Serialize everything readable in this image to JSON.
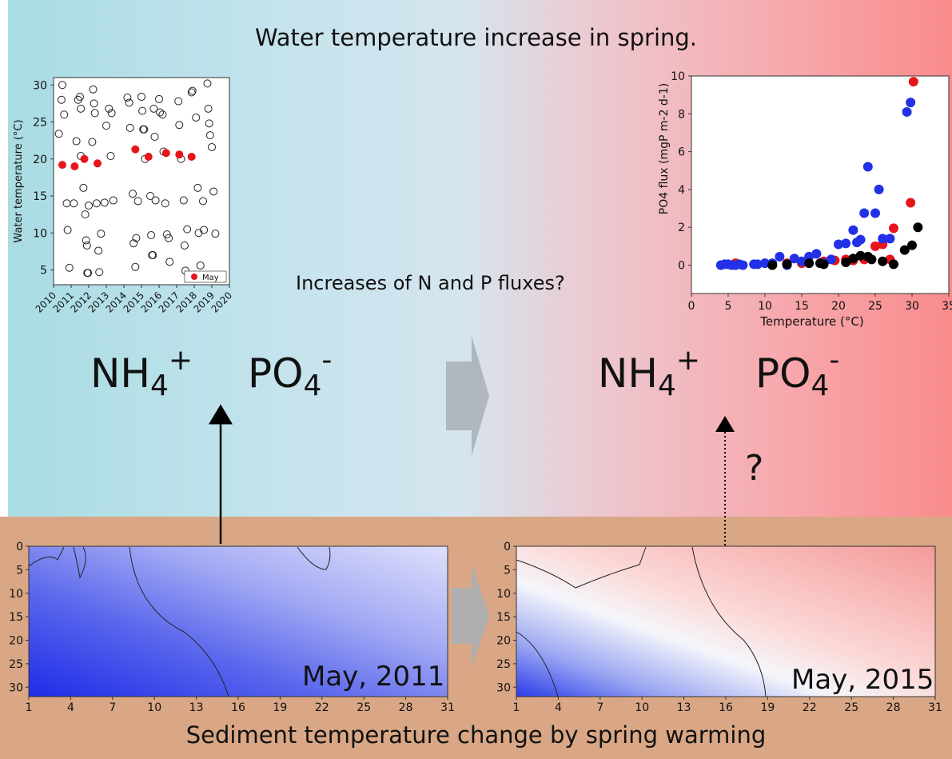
{
  "title": "Water temperature increase in spring.",
  "question": "Increases of N and P fluxes?",
  "bottom_title": "Sediment temperature change by spring warming",
  "question_mark": "?",
  "formulas": {
    "ammonium": {
      "base": "NH",
      "sub": "4",
      "sup": "+"
    },
    "phosphate": {
      "base": "PO",
      "sub": "4",
      "sup": "-"
    }
  },
  "colors": {
    "warm_red": "#e8141c",
    "cool_blue": "#2230e6",
    "black_series": "#000000",
    "sediment_bg": "#d9a785",
    "arrow_grey": "#a8afb6"
  },
  "chart_data": [
    {
      "type": "scatter",
      "id": "water-temperature",
      "ylabel": "Water temperature (°C)",
      "xlim": [
        2010,
        2020
      ],
      "ylim": [
        3,
        31
      ],
      "yticks": [
        5,
        10,
        15,
        20,
        25,
        30
      ],
      "xticks": [
        "2010",
        "2011",
        "2012",
        "2013",
        "2014",
        "2015",
        "2016",
        "2017",
        "2018",
        "2019",
        "2020"
      ],
      "legend": "May",
      "legend_position": "bottom-right",
      "series": [
        {
          "style": "open-circle",
          "points": [
            [
              2010.3,
              23.4
            ],
            [
              2010.5,
              30.0
            ],
            [
              2010.45,
              28.0
            ],
            [
              2010.6,
              26.0
            ],
            [
              2010.75,
              14.0
            ],
            [
              2010.8,
              10.4
            ],
            [
              2010.9,
              5.3
            ],
            [
              2011.15,
              14.0
            ],
            [
              2011.3,
              22.4
            ],
            [
              2011.4,
              28.0
            ],
            [
              2011.5,
              28.4
            ],
            [
              2011.55,
              26.8
            ],
            [
              2011.55,
              20.4
            ],
            [
              2011.7,
              16.1
            ],
            [
              2011.8,
              12.5
            ],
            [
              2011.85,
              9.0
            ],
            [
              2011.9,
              8.3
            ],
            [
              2011.92,
              4.6
            ],
            [
              2011.96,
              4.6
            ],
            [
              2012.0,
              13.7
            ],
            [
              2012.2,
              22.3
            ],
            [
              2012.25,
              29.4
            ],
            [
              2012.3,
              27.5
            ],
            [
              2012.35,
              26.2
            ],
            [
              2012.45,
              14.0
            ],
            [
              2012.55,
              7.6
            ],
            [
              2012.6,
              4.7
            ],
            [
              2012.7,
              9.9
            ],
            [
              2012.9,
              14.1
            ],
            [
              2013.0,
              24.5
            ],
            [
              2013.15,
              26.8
            ],
            [
              2013.25,
              20.4
            ],
            [
              2013.3,
              26.2
            ],
            [
              2013.4,
              14.4
            ],
            [
              2014.2,
              28.3
            ],
            [
              2014.3,
              27.6
            ],
            [
              2014.35,
              24.2
            ],
            [
              2014.5,
              15.3
            ],
            [
              2014.55,
              8.6
            ],
            [
              2014.65,
              5.4
            ],
            [
              2014.7,
              9.3
            ],
            [
              2014.8,
              14.3
            ],
            [
              2015.0,
              28.4
            ],
            [
              2015.05,
              26.5
            ],
            [
              2015.1,
              24.0
            ],
            [
              2015.15,
              24.0
            ],
            [
              2015.2,
              20.0
            ],
            [
              2015.5,
              15.0
            ],
            [
              2015.55,
              9.7
            ],
            [
              2015.6,
              7.0
            ],
            [
              2015.65,
              7.0
            ],
            [
              2015.7,
              26.8
            ],
            [
              2015.75,
              23.0
            ],
            [
              2015.8,
              14.4
            ],
            [
              2016.0,
              28.1
            ],
            [
              2016.05,
              26.3
            ],
            [
              2016.2,
              26.0
            ],
            [
              2016.25,
              21.0
            ],
            [
              2016.35,
              14.0
            ],
            [
              2016.45,
              9.8
            ],
            [
              2016.55,
              9.3
            ],
            [
              2016.6,
              6.1
            ],
            [
              2017.1,
              27.8
            ],
            [
              2017.15,
              24.6
            ],
            [
              2017.25,
              20.0
            ],
            [
              2017.4,
              14.4
            ],
            [
              2017.45,
              8.3
            ],
            [
              2017.5,
              4.9
            ],
            [
              2017.6,
              10.5
            ],
            [
              2017.85,
              29.0
            ],
            [
              2017.9,
              29.2
            ],
            [
              2018.1,
              25.6
            ],
            [
              2018.2,
              16.1
            ],
            [
              2018.25,
              10.0
            ],
            [
              2018.35,
              5.6
            ],
            [
              2018.5,
              14.3
            ],
            [
              2018.55,
              10.4
            ],
            [
              2018.75,
              30.2
            ],
            [
              2018.8,
              26.8
            ],
            [
              2018.85,
              24.8
            ],
            [
              2018.9,
              23.2
            ],
            [
              2019.0,
              21.6
            ],
            [
              2019.1,
              15.6
            ],
            [
              2019.2,
              9.9
            ]
          ]
        },
        {
          "name": "May",
          "style": "filled-red",
          "points": [
            [
              2010.5,
              19.2
            ],
            [
              2011.2,
              19.0
            ],
            [
              2011.75,
              20.0
            ],
            [
              2012.5,
              19.4
            ],
            [
              2014.65,
              21.3
            ],
            [
              2015.4,
              20.3
            ],
            [
              2016.4,
              20.8
            ],
            [
              2017.15,
              20.6
            ],
            [
              2017.85,
              20.3
            ]
          ]
        }
      ]
    },
    {
      "type": "scatter",
      "id": "po4-flux",
      "xlabel": "Temperature (°C)",
      "ylabel": "PO4 flux (mgP m-2 d-1)",
      "xlim": [
        0,
        35
      ],
      "ylim": [
        -1.5,
        10
      ],
      "xticks": [
        0,
        5,
        10,
        15,
        20,
        25,
        30,
        35
      ],
      "yticks": [
        0,
        2,
        4,
        6,
        8,
        10
      ],
      "series": [
        {
          "color": "red",
          "points": [
            [
              5,
              0.05
            ],
            [
              6,
              0.1
            ],
            [
              11,
              0.0
            ],
            [
              13,
              0.1
            ],
            [
              15,
              0.1
            ],
            [
              18,
              0.2
            ],
            [
              19.5,
              0.25
            ],
            [
              21,
              0.3
            ],
            [
              22,
              0.25
            ],
            [
              23.5,
              0.3
            ],
            [
              25,
              1.0
            ],
            [
              26,
              1.1
            ],
            [
              27,
              0.3
            ],
            [
              27.5,
              1.95
            ],
            [
              29.8,
              3.3
            ],
            [
              30.2,
              9.7
            ]
          ]
        },
        {
          "color": "blue",
          "points": [
            [
              4,
              0.0
            ],
            [
              4.5,
              0.05
            ],
            [
              5,
              0.05
            ],
            [
              5.5,
              0.0
            ],
            [
              6,
              0.0
            ],
            [
              6.5,
              0.05
            ],
            [
              7,
              0.0
            ],
            [
              8.5,
              0.05
            ],
            [
              9,
              0.05
            ],
            [
              10,
              0.1
            ],
            [
              11,
              0.1
            ],
            [
              12,
              0.45
            ],
            [
              13,
              0.0
            ],
            [
              14,
              0.35
            ],
            [
              15,
              0.2
            ],
            [
              16,
              0.45
            ],
            [
              17,
              0.6
            ],
            [
              18,
              0.1
            ],
            [
              19,
              0.3
            ],
            [
              20,
              1.1
            ],
            [
              21,
              1.15
            ],
            [
              22,
              1.85
            ],
            [
              22.5,
              1.2
            ],
            [
              23,
              1.35
            ],
            [
              23.5,
              2.75
            ],
            [
              24,
              5.2
            ],
            [
              25,
              2.75
            ],
            [
              25.5,
              4.0
            ],
            [
              26,
              1.4
            ],
            [
              27,
              1.4
            ],
            [
              29.3,
              8.1
            ],
            [
              29.8,
              8.6
            ]
          ]
        },
        {
          "color": "black",
          "points": [
            [
              11,
              0.0
            ],
            [
              13,
              0.05
            ],
            [
              16,
              0.1
            ],
            [
              17.5,
              0.1
            ],
            [
              18,
              0.05
            ],
            [
              21,
              0.15
            ],
            [
              22,
              0.35
            ],
            [
              23,
              0.5
            ],
            [
              24,
              0.45
            ],
            [
              24.5,
              0.3
            ],
            [
              26,
              0.2
            ],
            [
              27.5,
              0.05
            ],
            [
              29,
              0.8
            ],
            [
              30,
              1.05
            ],
            [
              30.8,
              2.0
            ]
          ]
        }
      ]
    },
    {
      "type": "heatmap",
      "id": "sediment-may-2011",
      "label": "May, 2011",
      "xticks": [
        "1",
        "4",
        "7",
        "10",
        "13",
        "16",
        "19",
        "22",
        "25",
        "28",
        "31"
      ],
      "yticks": [
        "0",
        "5",
        "10",
        "15",
        "20",
        "25",
        "30"
      ],
      "xlim": [
        1,
        31
      ],
      "ylim": [
        0,
        32
      ],
      "palette": "cool"
    },
    {
      "type": "heatmap",
      "id": "sediment-may-2015",
      "label": "May, 2015",
      "xticks": [
        "1",
        "4",
        "7",
        "10",
        "13",
        "16",
        "19",
        "22",
        "25",
        "28",
        "31"
      ],
      "yticks": [
        "0",
        "5",
        "10",
        "15",
        "20",
        "25",
        "30"
      ],
      "xlim": [
        1,
        31
      ],
      "ylim": [
        0,
        32
      ],
      "palette": "warm"
    }
  ]
}
